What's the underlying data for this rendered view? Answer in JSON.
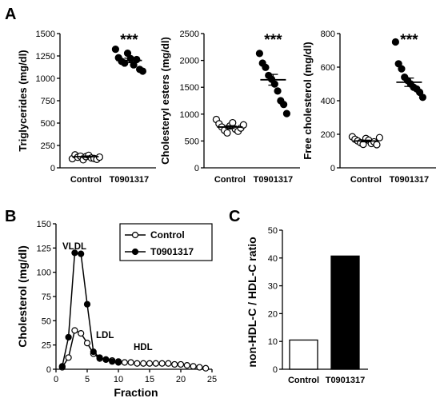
{
  "panels": {
    "a": "A",
    "b": "B",
    "c": "C"
  },
  "chart_data": [
    {
      "type": "scatter",
      "ylabel": "Triglycerides (mg/dl)",
      "ylim": [
        0,
        1500
      ],
      "yticks": [
        0,
        250,
        500,
        750,
        1000,
        1250,
        1500
      ],
      "categories": [
        "Control",
        "T0901317"
      ],
      "series": [
        {
          "values": [
            102,
            145,
            118,
            130,
            90,
            125,
            140,
            110,
            105,
            95,
            120
          ],
          "mean": 125,
          "sem": 8
        },
        {
          "values": [
            1325,
            1230,
            1190,
            1170,
            1280,
            1220,
            1150,
            1210,
            1100,
            1080
          ],
          "mean": 1200,
          "sem": 25
        }
      ],
      "annotation": "***"
    },
    {
      "type": "scatter",
      "ylabel": "Cholesteryl esters (mg/dl)",
      "ylim": [
        0,
        2500
      ],
      "yticks": [
        0,
        500,
        1000,
        1500,
        2000,
        2500
      ],
      "categories": [
        "Control",
        "T0901317"
      ],
      "series": [
        {
          "values": [
            900,
            820,
            760,
            700,
            650,
            780,
            840,
            720,
            680,
            740,
            800
          ],
          "mean": 760,
          "sem": 25
        },
        {
          "values": [
            2130,
            1950,
            1870,
            1720,
            1650,
            1560,
            1430,
            1250,
            1180,
            1010
          ],
          "mean": 1640,
          "sem": 100
        }
      ],
      "annotation": "***"
    },
    {
      "type": "scatter",
      "ylabel": "Free cholesterol (mg/dl)",
      "ylim": [
        0,
        800
      ],
      "yticks": [
        0,
        200,
        400,
        600,
        800
      ],
      "categories": [
        "Control",
        "T0901317"
      ],
      "series": [
        {
          "values": [
            185,
            170,
            160,
            150,
            140,
            175,
            165,
            145,
            155,
            138,
            180
          ],
          "mean": 160,
          "sem": 5
        },
        {
          "values": [
            750,
            620,
            590,
            540,
            520,
            500,
            480,
            470,
            450,
            420
          ],
          "mean": 510,
          "sem": 25
        }
      ],
      "annotation": "***"
    },
    {
      "type": "line",
      "xlabel": "Fraction",
      "ylabel": "Cholesterol (mg/dl)",
      "xlim": [
        0,
        25
      ],
      "ylim": [
        0,
        150
      ],
      "xticks": [
        0,
        5,
        10,
        15,
        20,
        25
      ],
      "yticks": [
        0,
        25,
        50,
        75,
        100,
        125,
        150
      ],
      "series": [
        {
          "name": "Control",
          "marker": "open-circle",
          "x": [
            1,
            2,
            3,
            4,
            5,
            6,
            7,
            8,
            9,
            10,
            11,
            12,
            13,
            14,
            15,
            16,
            17,
            18,
            19,
            20,
            21,
            22,
            23,
            24
          ],
          "y": [
            2,
            12,
            40,
            37,
            27,
            16,
            11,
            10,
            9,
            8,
            7,
            7,
            6,
            6,
            6,
            6,
            6,
            6,
            5,
            5,
            4,
            3,
            2,
            1
          ]
        },
        {
          "name": "T0901317",
          "marker": "filled-circle",
          "x": [
            1,
            2,
            3,
            4,
            5,
            6,
            7,
            8,
            9,
            10
          ],
          "y": [
            3,
            33,
            120,
            119,
            67,
            18,
            12,
            10,
            8,
            7
          ]
        }
      ],
      "legend": "top-right",
      "annotations": [
        "VLDL",
        "LDL",
        "HDL"
      ]
    },
    {
      "type": "bar",
      "ylabel": "non-HDL-C / HDL-C ratio",
      "ylim": [
        0,
        50
      ],
      "yticks": [
        0,
        10,
        20,
        30,
        40,
        50
      ],
      "categories": [
        "Control",
        "T0901317"
      ],
      "values": [
        10.5,
        40.7
      ],
      "colors": [
        "#ffffff",
        "#000000"
      ]
    }
  ]
}
